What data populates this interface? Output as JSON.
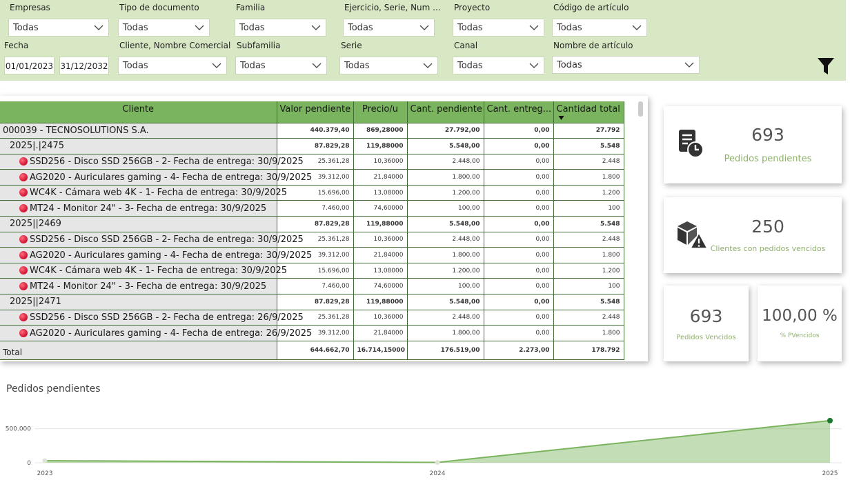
{
  "filters": {
    "empresas": {
      "label": "Empresas",
      "value": "Todas"
    },
    "tipo_documento": {
      "label": "Tipo de documento",
      "value": "Todas"
    },
    "familia": {
      "label": "Familia",
      "value": "Todas"
    },
    "ejercicio": {
      "label": "Ejercicio, Serie, Num ...",
      "value": "Todas"
    },
    "proyecto": {
      "label": "Proyecto",
      "value": "Todas"
    },
    "codigo_articulo": {
      "label": "Código de artículo",
      "value": "Todas"
    },
    "fecha": {
      "label": "Fecha",
      "from": "01/01/2023",
      "to": "31/12/2032"
    },
    "cliente": {
      "label": "Cliente, Nombre Comercial",
      "value": "Todas"
    },
    "subfamilia": {
      "label": "Subfamilia",
      "value": "Todas"
    },
    "serie": {
      "label": "Serie",
      "value": "Todas"
    },
    "canal": {
      "label": "Canal",
      "value": "Todas"
    },
    "nombre_articulo": {
      "label": "Nombre de artículo",
      "value": "Todas"
    }
  },
  "table": {
    "columns": [
      "Cliente",
      "Valor pendiente",
      "Precio/u",
      "Cant. pendiente",
      "Cant. entreg...",
      "Cantidad total"
    ],
    "sort_column": "Cantidad total",
    "rows": [
      {
        "level": 0,
        "dot": false,
        "cells": [
          "000039 - TECNOSOLUTIONS S.A.",
          "440.379,40",
          "869,28000",
          "27.792,00",
          "0,00",
          "27.792"
        ]
      },
      {
        "level": 1,
        "dot": false,
        "cells": [
          "2025|.|2475",
          "87.829,28",
          "119,88000",
          "5.548,00",
          "0,00",
          "5.548"
        ]
      },
      {
        "level": 2,
        "dot": true,
        "cells": [
          "SSD256 - Disco SSD 256GB - 2- Fecha de entrega: 30/9/2025",
          "25.361,28",
          "10,36000",
          "2.448,00",
          "0,00",
          "2.448"
        ]
      },
      {
        "level": 2,
        "dot": true,
        "cells": [
          "AG2020 - Auriculares gaming - 4- Fecha de entrega: 30/9/2025",
          "39.312,00",
          "21,84000",
          "1.800,00",
          "0,00",
          "1.800"
        ]
      },
      {
        "level": 2,
        "dot": true,
        "cells": [
          "WC4K - Cámara web 4K - 1- Fecha de entrega: 30/9/2025",
          "15.696,00",
          "13,08000",
          "1.200,00",
          "0,00",
          "1.200"
        ]
      },
      {
        "level": 2,
        "dot": true,
        "cells": [
          "MT24 - Monitor 24\" - 3- Fecha de entrega: 30/9/2025",
          "7.460,00",
          "74,60000",
          "100,00",
          "0,00",
          "100"
        ]
      },
      {
        "level": 1,
        "dot": false,
        "cells": [
          "2025||2469",
          "87.829,28",
          "119,88000",
          "5.548,00",
          "0,00",
          "5.548"
        ]
      },
      {
        "level": 2,
        "dot": true,
        "cells": [
          "SSD256 - Disco SSD 256GB - 2- Fecha de entrega: 30/9/2025",
          "25.361,28",
          "10,36000",
          "2.448,00",
          "0,00",
          "2.448"
        ]
      },
      {
        "level": 2,
        "dot": true,
        "cells": [
          "AG2020 - Auriculares gaming - 4- Fecha de entrega: 30/9/2025",
          "39.312,00",
          "21,84000",
          "1.800,00",
          "0,00",
          "1.800"
        ]
      },
      {
        "level": 2,
        "dot": true,
        "cells": [
          "WC4K - Cámara web 4K - 1- Fecha de entrega: 30/9/2025",
          "15.696,00",
          "13,08000",
          "1.200,00",
          "0,00",
          "1.200"
        ]
      },
      {
        "level": 2,
        "dot": true,
        "cells": [
          "MT24 - Monitor 24\" - 3- Fecha de entrega: 30/9/2025",
          "7.460,00",
          "74,60000",
          "100,00",
          "0,00",
          "100"
        ]
      },
      {
        "level": 1,
        "dot": false,
        "cells": [
          "2025||2471",
          "87.829,28",
          "119,88000",
          "5.548,00",
          "0,00",
          "5.548"
        ]
      },
      {
        "level": 2,
        "dot": true,
        "cells": [
          "SSD256 - Disco SSD 256GB - 2- Fecha de entrega: 26/9/2025",
          "25.361,28",
          "10,36000",
          "2.448,00",
          "0,00",
          "2.448"
        ]
      },
      {
        "level": 2,
        "dot": true,
        "cells": [
          "AG2020 - Auriculares gaming - 4- Fecha de entrega: 26/9/2025",
          "39.312,00",
          "21,84000",
          "1.800,00",
          "0,00",
          "1.800"
        ]
      }
    ],
    "total": [
      "Total",
      "644.662,70",
      "16.714,15000",
      "176.519,00",
      "2.273,00",
      "178.792"
    ]
  },
  "kpis": {
    "pedidos_pendientes": {
      "value": "693",
      "label": "Pedidos pendientes"
    },
    "clientes_vencidos": {
      "value": "250",
      "label": "Clientes con pedidos vencidos"
    },
    "pedidos_vencidos": {
      "value": "693",
      "label": "Pedidos Vencidos"
    },
    "pct_vencidos": {
      "value": "100,00 %",
      "label": "% PVencidos"
    }
  },
  "chart_data": {
    "type": "area",
    "title": "Pedidos pendientes",
    "x": [
      "2023",
      "2024",
      "2025"
    ],
    "values": [
      30000,
      5000,
      620000
    ],
    "yticks": [
      0,
      500000
    ],
    "ytick_labels": [
      "0",
      "500.000"
    ],
    "ylim": [
      0,
      700000
    ],
    "color": "#7ab45e",
    "grid": true
  },
  "colors": {
    "accent": "#7ab45e",
    "filterbar": "#d8e8c4",
    "kpi_label": "#8fb06c",
    "dot": "#e0203a"
  }
}
